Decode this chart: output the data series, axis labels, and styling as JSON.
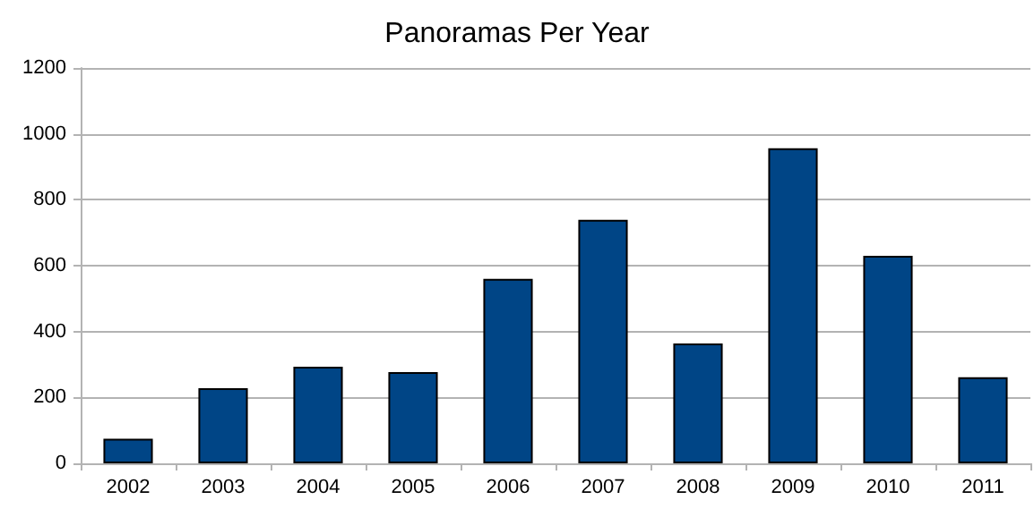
{
  "chart_data": {
    "type": "bar",
    "title": "Panoramas Per Year",
    "categories": [
      "2002",
      "2003",
      "2004",
      "2005",
      "2006",
      "2007",
      "2008",
      "2009",
      "2010",
      "2011"
    ],
    "values": [
      75,
      228,
      293,
      277,
      560,
      739,
      364,
      956,
      630,
      261
    ],
    "color": "#004586",
    "ylim": [
      0,
      1200
    ],
    "yticks": [
      0,
      200,
      400,
      600,
      800,
      1000,
      1200
    ],
    "grid": "y"
  }
}
